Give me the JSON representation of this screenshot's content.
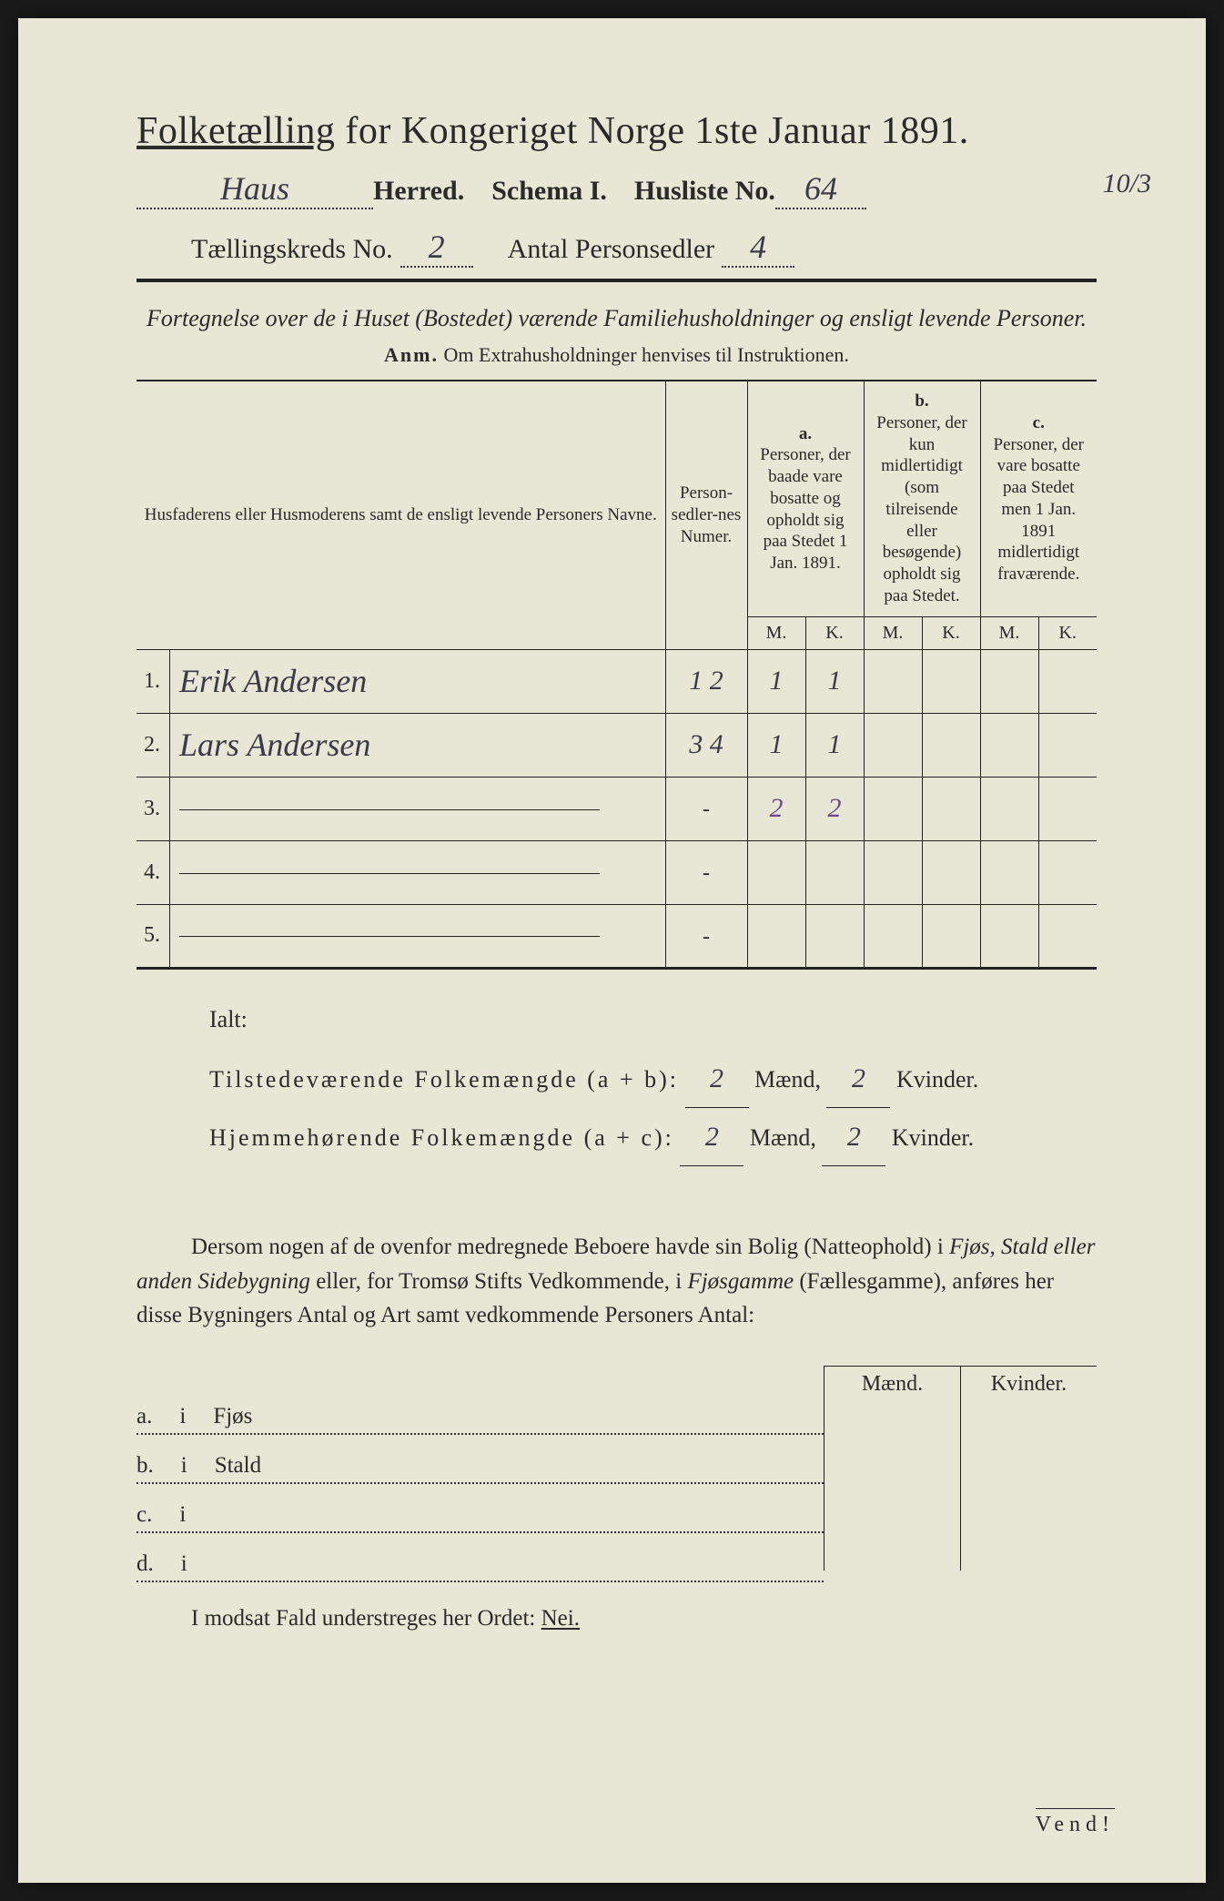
{
  "header": {
    "title_prefix": "Folketælling",
    "title_rest": " for Kongeriget Norge 1ste Januar 1891.",
    "herred_hand": "Haus",
    "herred_label": " Herred.",
    "schema_label": "Schema I.",
    "husliste_label": "Husliste No.",
    "husliste_no": "64",
    "margin_note": "10/3",
    "kreds_label": "Tællingskreds No.",
    "kreds_no": "2",
    "antal_label": "Antal Personsedler",
    "antal_val": "4"
  },
  "fortegnelse": {
    "line": "Fortegnelse over de i Huset (Bostedet) værende Familiehusholdninger og ensligt levende Personer.",
    "anm_label": "Anm.",
    "anm_text": " Om Extrahusholdninger henvises til Instruktionen."
  },
  "table": {
    "col_name": "Husfaderens eller Husmoderens samt de ensligt levende Personers Navne.",
    "col_numer": "Person-sedler-nes Numer.",
    "col_a_label": "a.",
    "col_a_text": "Personer, der baade vare bosatte og opholdt sig paa Stedet 1 Jan. 1891.",
    "col_b_label": "b.",
    "col_b_text": "Personer, der kun midlertidigt (som tilreisende eller besøgende) opholdt sig paa Stedet.",
    "col_c_label": "c.",
    "col_c_text": "Personer, der vare bosatte paa Stedet men 1 Jan. 1891 midlertidigt fraværende.",
    "mk_m": "M.",
    "mk_k": "K.",
    "rows": [
      {
        "n": "1.",
        "name": "Erik Andersen",
        "numer": "1  2",
        "a_m": "1",
        "a_k": "1",
        "b_m": "",
        "b_k": "",
        "c_m": "",
        "c_k": ""
      },
      {
        "n": "2.",
        "name": "Lars Andersen",
        "numer": "3 4",
        "a_m": "1",
        "a_k": "1",
        "b_m": "",
        "b_k": "",
        "c_m": "",
        "c_k": ""
      },
      {
        "n": "3.",
        "name": "",
        "numer": "-",
        "a_m": "2",
        "a_k": "2",
        "b_m": "",
        "b_k": "",
        "c_m": "",
        "c_k": ""
      },
      {
        "n": "4.",
        "name": "",
        "numer": "-",
        "a_m": "",
        "a_k": "",
        "b_m": "",
        "b_k": "",
        "c_m": "",
        "c_k": ""
      },
      {
        "n": "5.",
        "name": "",
        "numer": "-",
        "a_m": "",
        "a_k": "",
        "b_m": "",
        "b_k": "",
        "c_m": "",
        "c_k": ""
      }
    ]
  },
  "ialt": {
    "label": "Ialt:",
    "line1_label": "Tilstedeværende Folkemængde (a + b):",
    "line2_label": "Hjemmehørende Folkemængde (a + c):",
    "maend": "Mænd,",
    "kvinder": "Kvinder.",
    "v1_m": "2",
    "v1_k": "2",
    "v2_m": "2",
    "v2_k": "2"
  },
  "paragraph": {
    "text1": "Dersom nogen af de ovenfor medregnede Beboere havde sin Bolig (Natteophold) i ",
    "em1": "Fjøs, Stald eller anden Sidebygning",
    "text2": " eller, for Tromsø Stifts Vedkommende, i ",
    "em2": "Fjøsgamme",
    "text3": " (Fællesgamme), anføres her disse Bygningers Antal og Art samt vedkommende Personers Antal:"
  },
  "side": {
    "maend": "Mænd.",
    "kvinder": "Kvinder.",
    "rows": [
      {
        "l": "a.",
        "i": "i",
        "t": "Fjøs"
      },
      {
        "l": "b.",
        "i": "i",
        "t": "Stald"
      },
      {
        "l": "c.",
        "i": "i",
        "t": ""
      },
      {
        "l": "d.",
        "i": "i",
        "t": ""
      }
    ]
  },
  "modsat": {
    "text": "I modsat Fald understreges her Ordet: ",
    "nei": "Nei."
  },
  "vend": "Vend!"
}
